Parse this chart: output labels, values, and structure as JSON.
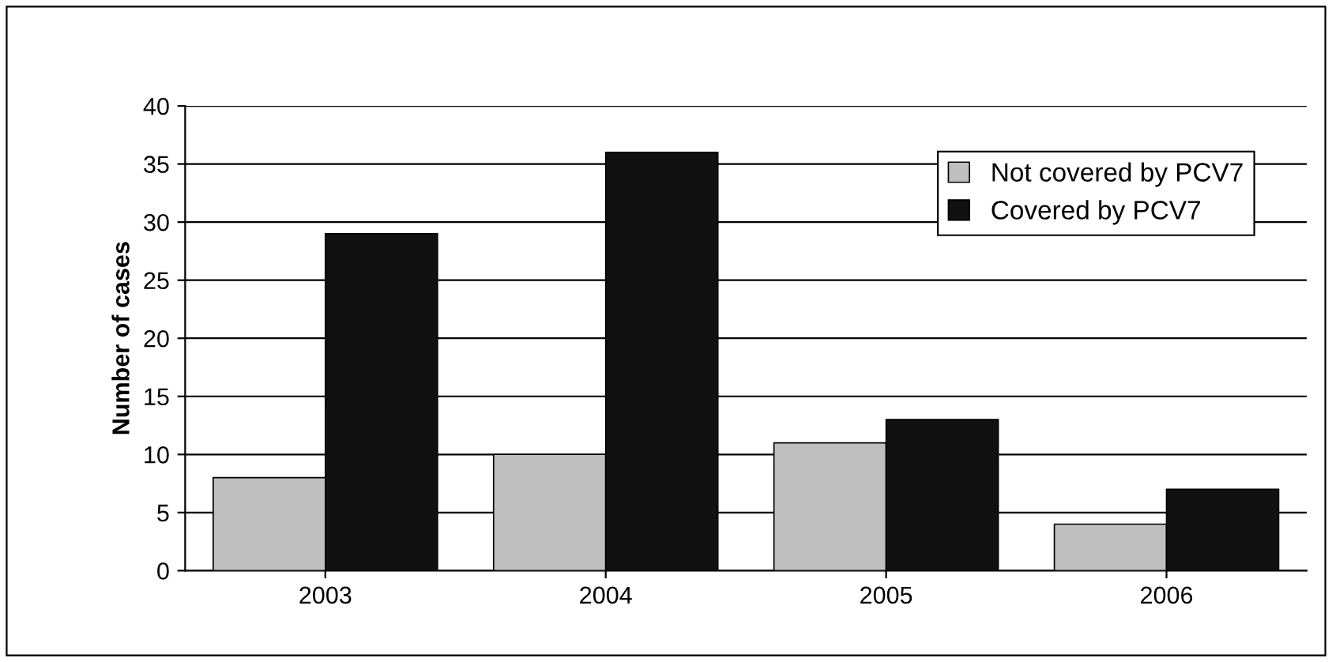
{
  "chart_data": {
    "type": "bar",
    "ylabel": "Number of cases",
    "categories": [
      "2003",
      "2004",
      "2005",
      "2006"
    ],
    "series": [
      {
        "name": "Not covered by PCV7",
        "color": "#bfbfbf",
        "values": [
          8,
          10,
          11,
          4
        ]
      },
      {
        "name": "Covered by PCV7",
        "color": "#111111",
        "values": [
          29,
          36,
          13,
          7
        ]
      }
    ],
    "ylim": [
      0,
      40
    ],
    "yticks": [
      0,
      5,
      10,
      15,
      20,
      25,
      30,
      35,
      40
    ],
    "grid": "y",
    "legend": "top right"
  }
}
